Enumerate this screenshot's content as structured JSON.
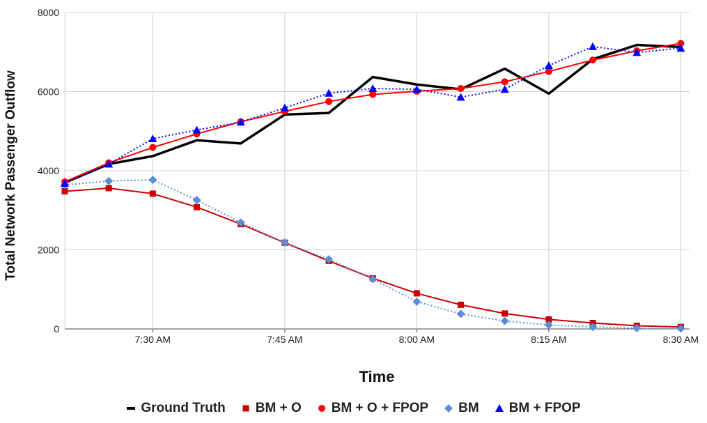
{
  "chart_data": {
    "type": "line",
    "title": "",
    "xlabel": "Time",
    "ylabel": "Total Network Passenger Outflow",
    "ylim": [
      0,
      8000
    ],
    "yticks": [
      0,
      2000,
      4000,
      6000,
      8000
    ],
    "xlim": [
      0,
      71
    ],
    "xticks": [
      {
        "x": 10,
        "label": "7:30 AM"
      },
      {
        "x": 25,
        "label": "7:45 AM"
      },
      {
        "x": 40,
        "label": "8:00 AM"
      },
      {
        "x": 55,
        "label": "8:15 AM"
      },
      {
        "x": 70,
        "label": "8:30 AM"
      }
    ],
    "x_units": "minutes after 7:20 AM",
    "grid": true,
    "legend_position": "bottom",
    "x": [
      0,
      5,
      10,
      15,
      20,
      25,
      30,
      35,
      40,
      45,
      50,
      55,
      60,
      65,
      70
    ],
    "series": [
      {
        "name": "Ground Truth",
        "color": "#000000",
        "marker": "none",
        "style": "solid",
        "values": [
          3700,
          4170,
          4370,
          4770,
          4690,
          5420,
          5460,
          6370,
          6180,
          6060,
          6580,
          5950,
          6820,
          7180,
          7130
        ]
      },
      {
        "name": "BM + O",
        "color": "#cc0000",
        "marker": "square",
        "style": "solid",
        "values": [
          3480,
          3560,
          3420,
          3080,
          2650,
          2180,
          1720,
          1280,
          900,
          610,
          390,
          240,
          150,
          80,
          50
        ]
      },
      {
        "name": "BM + O + FPOP",
        "color": "#ff0000",
        "marker": "circle",
        "style": "solid",
        "values": [
          3720,
          4200,
          4590,
          4930,
          5240,
          5500,
          5750,
          5930,
          6010,
          6080,
          6250,
          6510,
          6800,
          7030,
          7220
        ]
      },
      {
        "name": "BM",
        "color": "#5b8dd9",
        "marker": "diamond",
        "style": "dotted",
        "values": [
          3640,
          3740,
          3770,
          3260,
          2690,
          2180,
          1760,
          1260,
          690,
          380,
          200,
          100,
          50,
          20,
          10
        ]
      },
      {
        "name": "BM + FPOP",
        "color": "#0000ff",
        "marker": "triangle",
        "style": "dotted",
        "values": [
          3680,
          4170,
          4810,
          5030,
          5230,
          5590,
          5960,
          6080,
          6060,
          5860,
          6060,
          6660,
          7140,
          6990,
          7100
        ]
      }
    ]
  }
}
